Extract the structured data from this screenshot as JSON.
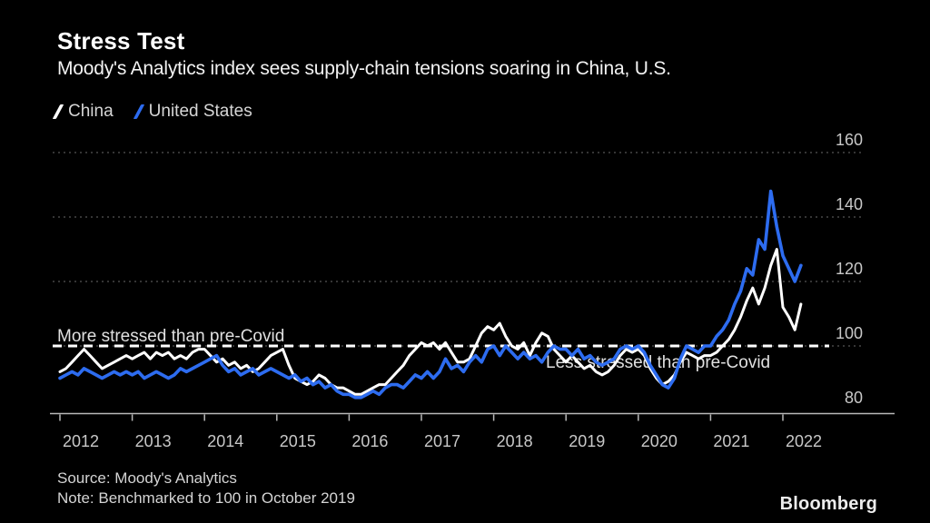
{
  "header": {
    "title": "Stress Test",
    "subtitle": "Moody's Analytics index sees supply-chain tensions soaring in China, U.S."
  },
  "legend": {
    "items": [
      {
        "label": "China",
        "color": "#ffffff"
      },
      {
        "label": "United States",
        "color": "#2d6cf0"
      }
    ]
  },
  "annotations": {
    "above_line": "More stressed than pre-Covid",
    "below_line": "Less stressed than pre-Covid"
  },
  "footer": {
    "source": "Source: Moody's Analytics",
    "note": "Note: Benchmarked to 100 in October 2019",
    "brand": "Bloomberg"
  },
  "colors": {
    "background": "#000000",
    "china_line": "#ffffff",
    "us_line": "#2d6cf0",
    "gridline": "#555555",
    "axis": "#b8b8b8",
    "tick_label": "#c8c8c8",
    "benchmark_line": "#ffffff"
  },
  "chart_data": {
    "type": "line",
    "title": "Stress Test",
    "subtitle": "Moody's Analytics index sees supply-chain tensions soaring in China, U.S.",
    "x_unit": "month",
    "x_start": "2012-01",
    "x_end": "2022-04",
    "x_tick_labels": [
      "2012",
      "2013",
      "2014",
      "2015",
      "2016",
      "2017",
      "2018",
      "2019",
      "2020",
      "2021",
      "2022"
    ],
    "y_ticks": [
      80,
      100,
      120,
      140,
      160
    ],
    "ylim": [
      76,
      162
    ],
    "grid": "dotted-horizontal",
    "legend_position": "top-left",
    "benchmark": {
      "value": 100,
      "label_above": "More stressed than pre-Covid",
      "label_below": "Less stressed than pre-Covid",
      "note": "Benchmarked to 100 in October 2019"
    },
    "series": [
      {
        "name": "China",
        "color": "#ffffff",
        "values": [
          92,
          93,
          95,
          97,
          99,
          97,
          95,
          93,
          94,
          95,
          96,
          97,
          96,
          97,
          98,
          96,
          98,
          97,
          98,
          96,
          97,
          96,
          98,
          99,
          99,
          97,
          95,
          96,
          94,
          95,
          93,
          94,
          92,
          93,
          95,
          97,
          98,
          99,
          94,
          90,
          89,
          88,
          89,
          91,
          90,
          88,
          87,
          87,
          86,
          85,
          85,
          86,
          87,
          88,
          88,
          90,
          92,
          94,
          97,
          99,
          101,
          100,
          101,
          99,
          101,
          98,
          95,
          95,
          96,
          100,
          104,
          106,
          105,
          107,
          103,
          100,
          99,
          101,
          97,
          101,
          104,
          103,
          99,
          97,
          95,
          97,
          95,
          93,
          94,
          92,
          91,
          92,
          94,
          97,
          99,
          98,
          99,
          97,
          93,
          90,
          88,
          89,
          91,
          95,
          98,
          97,
          96,
          97,
          97,
          98,
          100,
          102,
          105,
          109,
          114,
          118,
          113,
          118,
          125,
          130,
          112,
          109,
          105,
          113
        ]
      },
      {
        "name": "United States",
        "color": "#2d6cf0",
        "values": [
          90,
          91,
          92,
          91,
          93,
          92,
          91,
          90,
          91,
          92,
          91,
          92,
          91,
          92,
          90,
          91,
          92,
          91,
          90,
          91,
          93,
          92,
          93,
          94,
          95,
          96,
          97,
          94,
          92,
          93,
          91,
          92,
          93,
          91,
          92,
          93,
          92,
          91,
          90,
          91,
          89,
          90,
          88,
          89,
          87,
          88,
          86,
          85,
          85,
          84,
          84,
          85,
          86,
          85,
          87,
          88,
          88,
          87,
          89,
          91,
          90,
          92,
          90,
          92,
          96,
          93,
          94,
          92,
          95,
          97,
          95,
          99,
          100,
          97,
          100,
          98,
          96,
          98,
          96,
          97,
          95,
          98,
          100,
          99,
          99,
          97,
          99,
          96,
          97,
          95,
          94,
          95,
          96,
          99,
          100,
          99,
          100,
          98,
          94,
          91,
          88,
          87,
          90,
          96,
          100,
          99,
          98,
          100,
          100,
          103,
          105,
          108,
          113,
          117,
          124,
          122,
          133,
          130,
          148,
          137,
          128,
          124,
          120,
          125
        ]
      }
    ]
  }
}
